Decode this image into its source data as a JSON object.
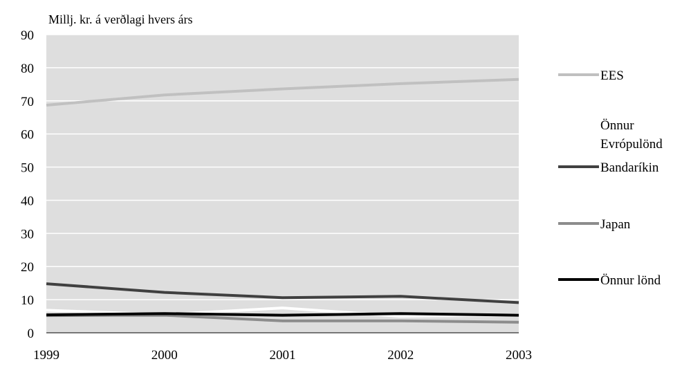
{
  "chart_data": {
    "type": "line",
    "title": "",
    "ylabel": "Millj. kr. á verðlagi hvers árs",
    "xlabel": "",
    "x": [
      "1999",
      "2000",
      "2001",
      "2002",
      "2003"
    ],
    "ylim": [
      0,
      90
    ],
    "yticks": [
      0,
      10,
      20,
      30,
      40,
      50,
      60,
      70,
      80,
      90
    ],
    "grid": true,
    "legend_position": "right",
    "plot_background": "#dedede",
    "series": [
      {
        "name": "EES",
        "color": "#c0c0c0",
        "values": [
          68.7,
          71.8,
          73.6,
          75.2,
          76.5
        ]
      },
      {
        "name_lines": [
          "Önnur",
          "Evrópulönd"
        ],
        "color": "#ffffff",
        "values": [
          6.8,
          5.5,
          7.5,
          5.0,
          5.4
        ]
      },
      {
        "name": "Bandaríkin",
        "color": "#404040",
        "values": [
          14.8,
          12.2,
          10.6,
          11.0,
          9.1
        ]
      },
      {
        "name": "Japan",
        "color": "#8c8c8c",
        "values": [
          5.2,
          5.3,
          3.6,
          3.6,
          3.2
        ]
      },
      {
        "name": "Önnur lönd",
        "color": "#000000",
        "values": [
          5.4,
          5.8,
          5.3,
          5.8,
          5.3
        ]
      }
    ]
  }
}
